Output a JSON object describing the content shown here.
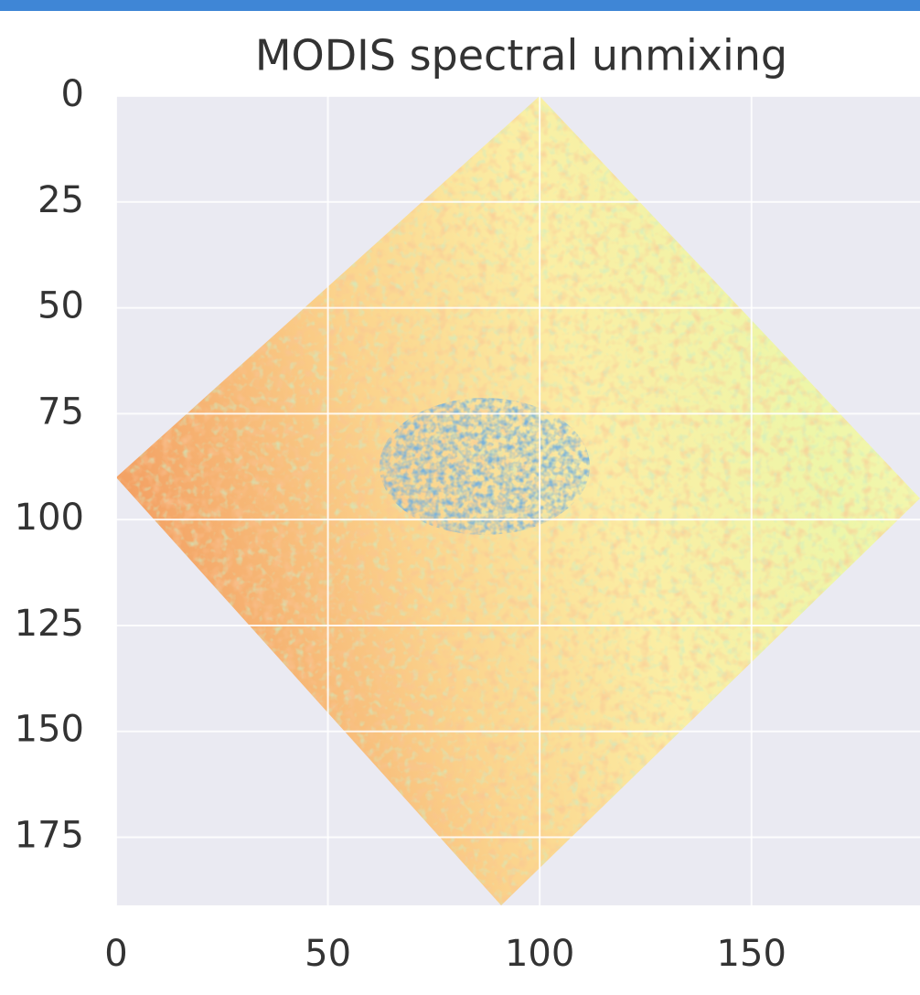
{
  "chart_data": {
    "type": "image",
    "title": "MODIS spectral unmixing",
    "xlim": [
      0,
      190
    ],
    "ylim": [
      190,
      0
    ],
    "xticks": [
      0,
      50,
      100,
      150
    ],
    "yticks": [
      0,
      25,
      50,
      75,
      100,
      125,
      150,
      175
    ],
    "grid": true
  }
}
